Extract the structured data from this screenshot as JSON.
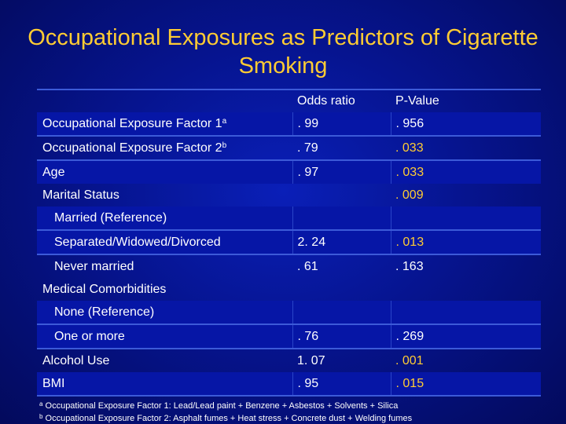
{
  "title": "Occupational Exposures as Predictors of Cigarette Smoking",
  "columns": {
    "label": "",
    "odds": "Odds ratio",
    "p": "P-Value"
  },
  "rows": [
    {
      "label": "Occupational Exposure Factor 1",
      "sup": "a",
      "indent": false,
      "odds": ". 99",
      "p": ". 956",
      "sig": false
    },
    {
      "label": "Occupational Exposure Factor 2",
      "sup": "b",
      "indent": false,
      "odds": ". 79",
      "p": ". 033",
      "sig": true
    },
    {
      "label": "Age",
      "sup": "",
      "indent": false,
      "odds": ". 97",
      "p": ". 033",
      "sig": true
    },
    {
      "label": "Marital Status",
      "sup": "",
      "indent": false,
      "odds": "",
      "p": ". 009",
      "sig": true
    },
    {
      "label": "Married (Reference)",
      "sup": "",
      "indent": true,
      "odds": "",
      "p": "",
      "sig": false
    },
    {
      "label": "Separated/Widowed/Divorced",
      "sup": "",
      "indent": true,
      "odds": "2. 24",
      "p": ". 013",
      "sig": true
    },
    {
      "label": "Never married",
      "sup": "",
      "indent": true,
      "odds": ". 61",
      "p": ". 163",
      "sig": false
    },
    {
      "label": "Medical Comorbidities",
      "sup": "",
      "indent": false,
      "odds": "",
      "p": "",
      "sig": false
    },
    {
      "label": "None (Reference)",
      "sup": "",
      "indent": true,
      "odds": "",
      "p": "",
      "sig": false
    },
    {
      "label": "One or more",
      "sup": "",
      "indent": true,
      "odds": ". 76",
      "p": ". 269",
      "sig": false
    },
    {
      "label": "Alcohol Use",
      "sup": "",
      "indent": false,
      "odds": "1. 07",
      "p": ". 001",
      "sig": true
    },
    {
      "label": "BMI",
      "sup": "",
      "indent": false,
      "odds": ". 95",
      "p": ". 015",
      "sig": true
    }
  ],
  "footnotes": [
    {
      "sup": "a",
      "text": "Occupational Exposure Factor 1: Lead/Lead paint + Benzene + Asbestos + Solvents + Silica"
    },
    {
      "sup": "b",
      "text": "Occupational Exposure Factor 2: Asphalt fumes + Heat stress + Concrete dust + Welding fumes"
    }
  ],
  "colors": {
    "background": "#06148f",
    "title": "#ffcc33",
    "significant": "#ffcc33",
    "band": "#0616a6",
    "rule": "#3c5ad8"
  }
}
